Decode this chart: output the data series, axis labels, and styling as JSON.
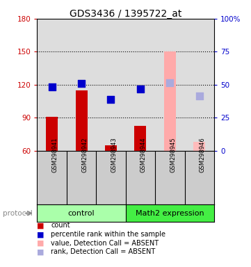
{
  "title": "GDS3436 / 1395722_at",
  "samples": [
    "GSM298941",
    "GSM298942",
    "GSM298943",
    "GSM298944",
    "GSM298945",
    "GSM298946"
  ],
  "bar_values": [
    91,
    115,
    65,
    83,
    150,
    68
  ],
  "bar_colors": [
    "#cc0000",
    "#cc0000",
    "#cc0000",
    "#cc0000",
    "#ffaaaa",
    "#ffbbbb"
  ],
  "dot_values": [
    118,
    121,
    107,
    116,
    122,
    110
  ],
  "dot_colors": [
    "#0000cc",
    "#0000cc",
    "#0000cc",
    "#0000cc",
    "#aaaadd",
    "#aaaadd"
  ],
  "ylim_left": [
    60,
    180
  ],
  "ylim_right": [
    0,
    100
  ],
  "yticks_left": [
    60,
    90,
    120,
    150,
    180
  ],
  "yticks_right": [
    0,
    25,
    50,
    75,
    100
  ],
  "ytick_labels_right": [
    "0",
    "25",
    "50",
    "75",
    "100%"
  ],
  "group_labels": [
    "control",
    "Math2 expression"
  ],
  "ctrl_color": "#aaffaa",
  "math2_color": "#44ee44",
  "legend_items": [
    {
      "label": "count",
      "color": "#cc0000"
    },
    {
      "label": "percentile rank within the sample",
      "color": "#0000cc"
    },
    {
      "label": "value, Detection Call = ABSENT",
      "color": "#ffaaaa"
    },
    {
      "label": "rank, Detection Call = ABSENT",
      "color": "#aaaadd"
    }
  ],
  "protocol_label": "protocol",
  "bar_width": 0.4,
  "dot_size": 45,
  "background_color": "#ffffff",
  "plot_bg_color": "#dddddd",
  "sample_bg_color": "#cccccc",
  "left_axis_color": "#cc0000",
  "right_axis_color": "#0000cc",
  "gridline_color": "black",
  "gridline_ticks": [
    90,
    120,
    150
  ]
}
